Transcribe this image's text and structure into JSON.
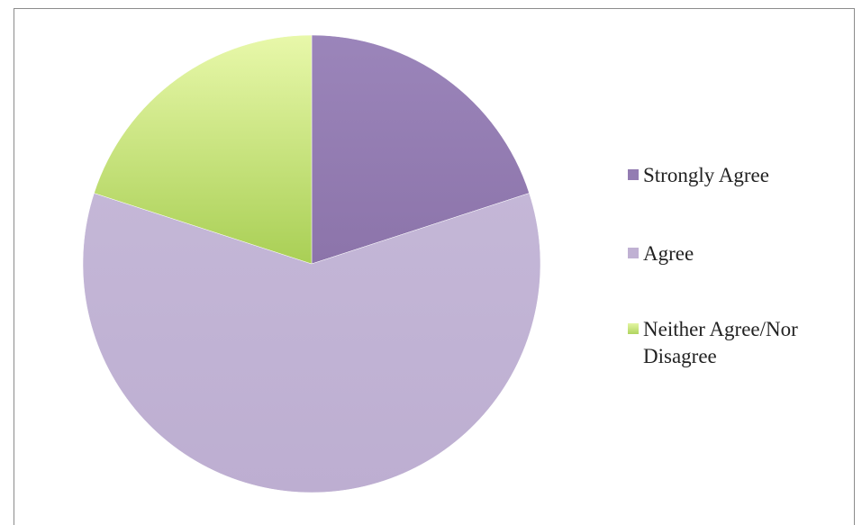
{
  "chart_data": {
    "type": "pie",
    "categories": [
      "Strongly Agree",
      "Agree",
      "Neither Agree/Nor Disagree"
    ],
    "values": [
      20,
      60,
      20
    ],
    "colors": [
      "#937CB2",
      "#C0B1D3",
      "#B7D86E"
    ],
    "title": "",
    "legend_position": "right",
    "start_angle": "12 o'clock",
    "direction": "clockwise"
  }
}
